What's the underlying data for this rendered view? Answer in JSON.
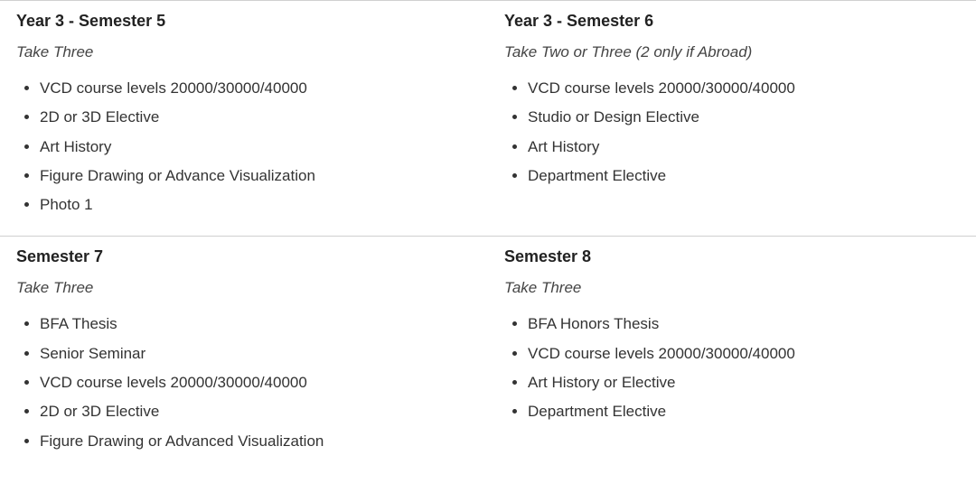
{
  "rows": [
    {
      "left": {
        "title": "Year 3 - Semester 5",
        "subtitle": "Take Three",
        "items": [
          "VCD course levels 20000/30000/40000",
          "2D or 3D Elective",
          "Art History",
          "Figure Drawing or Advance Visualization",
          "Photo 1"
        ]
      },
      "right": {
        "title": "Year 3 - Semester 6",
        "subtitle": "Take Two or Three (2 only if Abroad)",
        "items": [
          "VCD course levels 20000/30000/40000",
          "Studio or Design Elective",
          "Art History",
          "Department Elective"
        ]
      }
    },
    {
      "left": {
        "title": "Semester 7",
        "subtitle": "Take Three",
        "items": [
          "BFA Thesis",
          "Senior Seminar",
          "VCD course levels 20000/30000/40000",
          "2D or 3D Elective",
          "Figure Drawing or Advanced Visualization"
        ]
      },
      "right": {
        "title": "Semester 8",
        "subtitle": "Take Three",
        "items": [
          "BFA Honors Thesis",
          "VCD course levels 20000/30000/40000",
          "Art History or Elective",
          "Department Elective"
        ]
      }
    }
  ]
}
